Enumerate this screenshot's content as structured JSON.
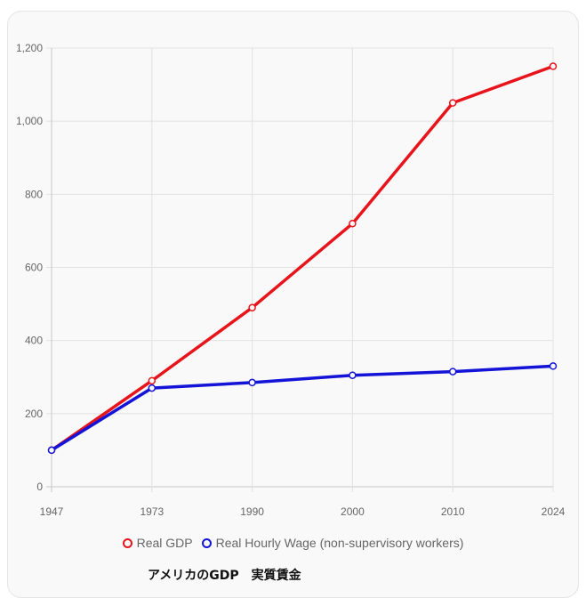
{
  "chart_data": {
    "type": "line",
    "categories": [
      "1947",
      "1973",
      "1990",
      "2000",
      "2010",
      "2024"
    ],
    "series": [
      {
        "name": "Real GDP",
        "color": "#e8141b",
        "values": [
          100,
          290,
          490,
          720,
          1050,
          1150
        ]
      },
      {
        "name": "Real Hourly Wage (non-supervisory workers)",
        "color": "#1414d8",
        "values": [
          100,
          270,
          285,
          305,
          315,
          330
        ]
      }
    ],
    "ylim": [
      0,
      1200
    ],
    "yticks": [
      0,
      200,
      400,
      600,
      800,
      1000,
      1200
    ],
    "ytick_labels": [
      "0",
      "200",
      "400",
      "600",
      "800",
      "1,000",
      "1,200"
    ],
    "grid": true,
    "legend_position": "bottom",
    "title": "",
    "xlabel": "",
    "ylabel": ""
  },
  "caption": "アメリカのGDP　実質賃金"
}
